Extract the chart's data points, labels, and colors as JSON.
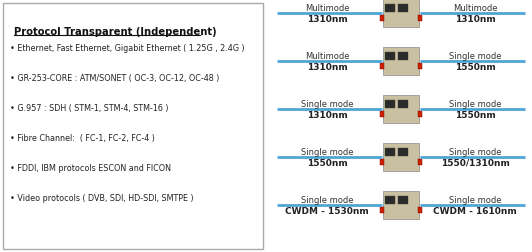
{
  "bg_color": "#ffffff",
  "left_panel": {
    "title": "Protocol Transparent (Independent)",
    "bullets": [
      "• Ethernet, Fast Ethernet, Gigabit Ethernet ( 1.25G , 2.4G )",
      "• GR-253-CORE : ATM/SONET ( OC-3, OC-12, OC-48 )",
      "• G.957 : SDH ( STM-1, STM-4, STM-16 )",
      "• Fibre Channel:  ( FC-1, FC-2, FC-4 )",
      "• FDDI, IBM protocols ESCON and FICON",
      "• Video protocols ( DVB, SDI, HD-SDI, SMTPE )"
    ]
  },
  "right_panel": {
    "rows": [
      {
        "left_mode": "Multimode",
        "left_wl": "1310nm",
        "right_mode": "Multimode",
        "right_wl": "1310nm"
      },
      {
        "left_mode": "Multimode",
        "left_wl": "1310nm",
        "right_mode": "Single mode",
        "right_wl": "1550nm"
      },
      {
        "left_mode": "Single mode",
        "left_wl": "1310nm",
        "right_mode": "Single mode",
        "right_wl": "1550nm"
      },
      {
        "left_mode": "Single mode",
        "left_wl": "1550nm",
        "right_mode": "Single mode",
        "right_wl": "1550/1310nm"
      },
      {
        "left_mode": "Single mode",
        "left_wl": "CWDM - 1530nm",
        "right_mode": "Single mode",
        "right_wl": "CWDM - 1610nm"
      }
    ],
    "line_color": "#4da6d4",
    "text_color": "#333333"
  }
}
